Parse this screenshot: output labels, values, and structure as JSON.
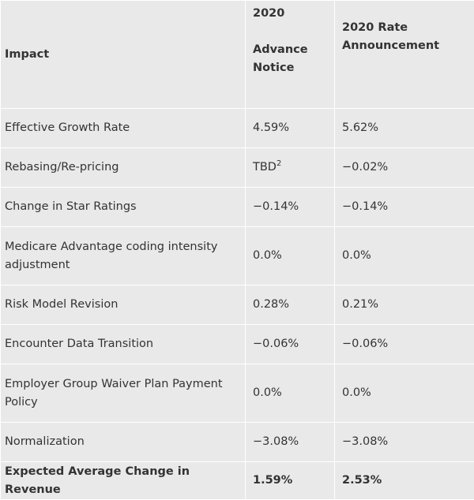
{
  "table": {
    "headers": {
      "impact": "Impact",
      "advance_notice": [
        "2020",
        "Advance",
        "Notice"
      ],
      "rate_announcement": [
        "2020 Rate",
        "Announcement"
      ]
    },
    "rows": [
      {
        "impact": "Effective Growth Rate",
        "advance": "4.59%",
        "rate": "5.62%"
      },
      {
        "impact": "Rebasing/Re-pricing",
        "advance": "TBD",
        "advance_sup": "2",
        "rate": "−0.02%"
      },
      {
        "impact": "Change in Star Ratings",
        "advance": "−0.14%",
        "rate": "−0.14%"
      },
      {
        "impact_lines": [
          "Medicare Advantage coding intensity",
          "adjustment"
        ],
        "advance": "0.0%",
        "rate": "0.0%"
      },
      {
        "impact": "Risk Model Revision",
        "advance": "0.28%",
        "rate": "0.21%"
      },
      {
        "impact": "Encounter Data Transition",
        "advance": "−0.06%",
        "rate": "−0.06%"
      },
      {
        "impact_lines": [
          "Employer Group Waiver Plan Payment",
          "Policy"
        ],
        "advance": "0.0%",
        "rate": "0.0%"
      },
      {
        "impact": "Normalization",
        "advance": "−3.08%",
        "rate": "−3.08%"
      }
    ],
    "total": {
      "impact": "Expected Average Change in Revenue",
      "advance": "1.59%",
      "rate": "2.53%"
    }
  }
}
